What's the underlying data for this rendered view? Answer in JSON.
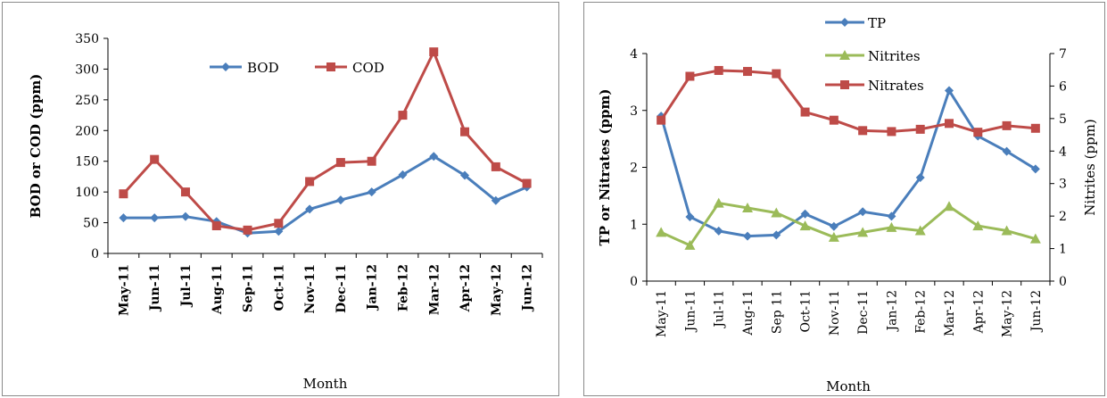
{
  "chart_data": [
    {
      "type": "line",
      "title": "",
      "xlabel": "Month",
      "ylabel": "BOD or COD (ppm)",
      "ylim": [
        0,
        350
      ],
      "yticks": [
        0,
        50,
        100,
        150,
        200,
        250,
        300,
        350
      ],
      "categories": [
        "May-11",
        "Jun-11",
        "Jul-11",
        "Aug-11",
        "Sep-11",
        "Oct-11",
        "Nov-11",
        "Dec-11",
        "Jan-12",
        "Feb-12",
        "Mar-12",
        "Apr-12",
        "May-12",
        "Jun-12"
      ],
      "series": [
        {
          "name": "BOD",
          "color": "#4A7EBB",
          "marker": "diamond",
          "values": [
            58,
            58,
            60,
            52,
            33,
            36,
            72,
            87,
            100,
            128,
            158,
            127,
            86,
            108
          ]
        },
        {
          "name": "COD",
          "color": "#BE4B48",
          "marker": "square",
          "values": [
            97,
            153,
            100,
            45,
            38,
            49,
            117,
            148,
            150,
            225,
            328,
            198,
            141,
            114
          ]
        }
      ],
      "legend": "top"
    },
    {
      "type": "line",
      "title": "",
      "xlabel": "Month",
      "ylabel": "TP or Nitrates (ppm)",
      "ylabel_right": "Nitrites (ppm)",
      "ylim": [
        0,
        4
      ],
      "ylim_right": [
        0,
        7
      ],
      "yticks": [
        "0",
        "1",
        "2",
        "3",
        "4"
      ],
      "yticks_right": [
        "0",
        "1",
        "2",
        "3",
        "4",
        "5",
        "6",
        "7"
      ],
      "categories": [
        "May-11",
        "Jun-11",
        "Jul-11",
        "Aug-11",
        "Sep 11",
        "Oct-11",
        "Nov-11",
        "Dec-11",
        "Jan-12",
        "Feb-12",
        "Mar-12",
        "Apr-12",
        "May-12",
        "Jun-12"
      ],
      "series": [
        {
          "name": "TP",
          "color": "#4A7EBB",
          "marker": "diamond",
          "axis": "left",
          "values": [
            2.9,
            1.13,
            0.88,
            0.79,
            0.81,
            1.18,
            0.96,
            1.22,
            1.14,
            1.82,
            3.35,
            2.55,
            2.28,
            1.97
          ]
        },
        {
          "name": "Nitrites",
          "color": "#9BBB59",
          "marker": "triangle",
          "axis": "right",
          "values": [
            1.5,
            1.1,
            2.4,
            2.25,
            2.1,
            1.7,
            1.35,
            1.5,
            1.65,
            1.55,
            2.3,
            1.7,
            1.55,
            1.3
          ]
        },
        {
          "name": "Nitrates",
          "color": "#BE4B48",
          "marker": "square",
          "axis": "right",
          "values": [
            4.95,
            6.3,
            6.48,
            6.45,
            6.38,
            5.2,
            4.95,
            4.63,
            4.6,
            4.67,
            4.85,
            4.58,
            4.78,
            4.7
          ]
        }
      ],
      "legend": "top-center"
    }
  ]
}
